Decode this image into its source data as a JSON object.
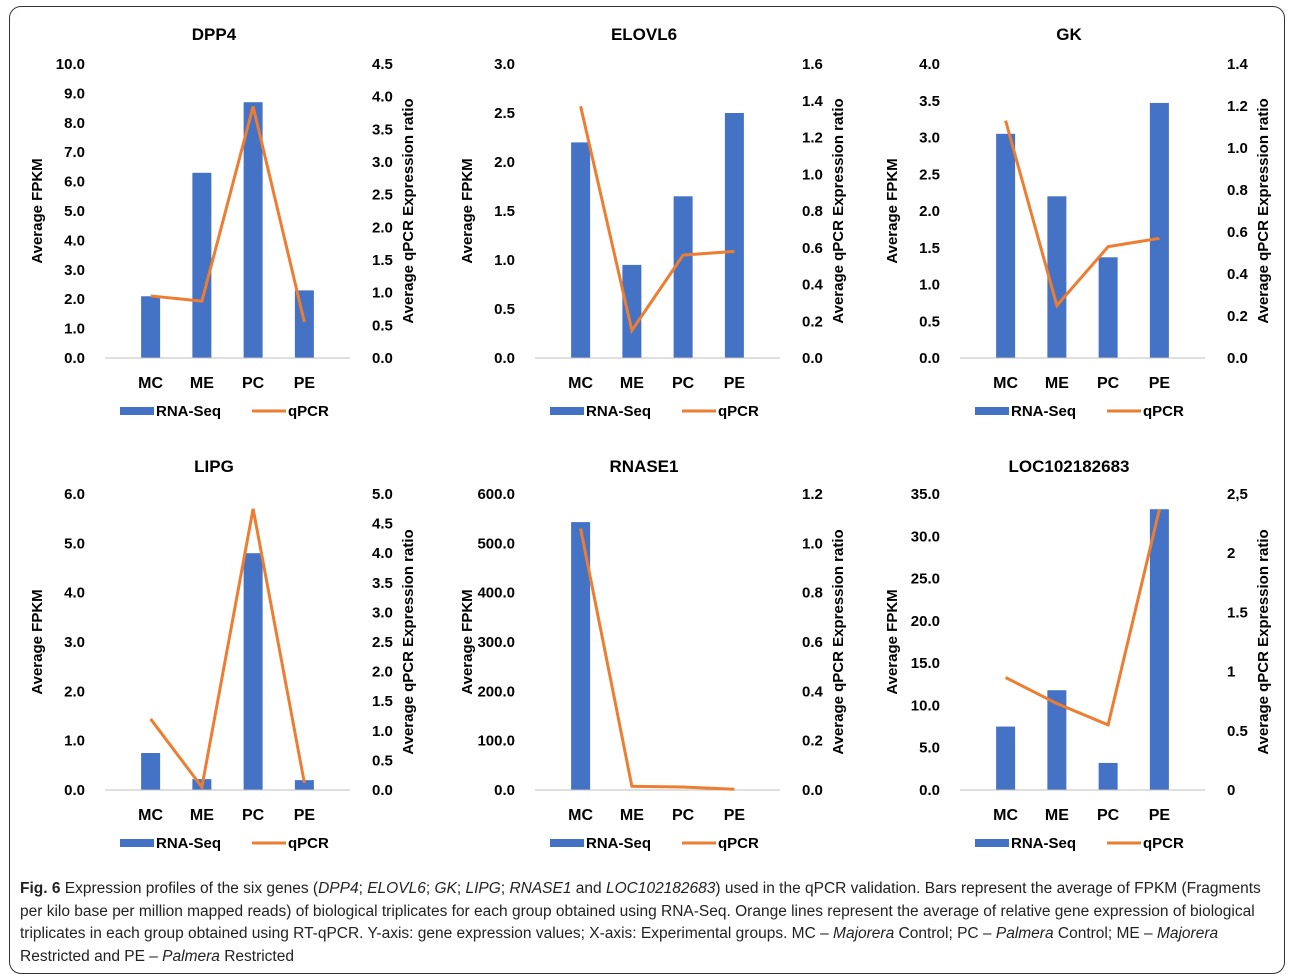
{
  "colors": {
    "bar": "#4472C4",
    "line": "#ED7D31",
    "text": "#000000",
    "axis": "#BFBFBF"
  },
  "legend": {
    "bar_label": "RNA-Seq",
    "line_label": "qPCR"
  },
  "axis_labels": {
    "y_left": "Average FPKM",
    "y_right": "Average qPCR Expression ratio"
  },
  "chart_data": [
    {
      "type": "bar",
      "title": "DPP4",
      "categories": [
        "MC",
        "ME",
        "PC",
        "PE"
      ],
      "series": [
        {
          "name": "RNA-Seq",
          "type": "bar",
          "axis": "left",
          "values": [
            2.1,
            6.3,
            8.7,
            2.3
          ]
        },
        {
          "name": "qPCR",
          "type": "line",
          "axis": "right",
          "values": [
            0.95,
            0.87,
            3.85,
            0.55
          ]
        }
      ],
      "ylabel": "Average FPKM",
      "y2label": "Average qPCR Expression ratio",
      "ylim": [
        0,
        10
      ],
      "y2lim": [
        0,
        4.5
      ],
      "yticks": [
        "0.0",
        "1.0",
        "2.0",
        "3.0",
        "4.0",
        "5.0",
        "6.0",
        "7.0",
        "8.0",
        "9.0",
        "10.0"
      ],
      "y2ticks": [
        "0.0",
        "0.5",
        "1.0",
        "1.5",
        "2.0",
        "2.5",
        "3.0",
        "3.5",
        "4.0",
        "4.5"
      ],
      "grid": false,
      "legend_position": "bottom"
    },
    {
      "type": "bar",
      "title": "ELOVL6",
      "categories": [
        "MC",
        "ME",
        "PC",
        "PE"
      ],
      "series": [
        {
          "name": "RNA-Seq",
          "type": "bar",
          "axis": "left",
          "values": [
            2.2,
            0.95,
            1.65,
            2.5
          ]
        },
        {
          "name": "qPCR",
          "type": "line",
          "axis": "right",
          "values": [
            1.37,
            0.15,
            0.56,
            0.58
          ]
        }
      ],
      "ylabel": "Average FPKM",
      "y2label": "Average qPCR Expression ratio",
      "ylim": [
        0,
        3
      ],
      "y2lim": [
        0,
        1.6
      ],
      "yticks": [
        "0.0",
        "0.5",
        "1.0",
        "1.5",
        "2.0",
        "2.5",
        "3.0"
      ],
      "y2ticks": [
        "0.0",
        "0.2",
        "0.4",
        "0.6",
        "0.8",
        "1.0",
        "1.2",
        "1.4",
        "1.6"
      ],
      "grid": false,
      "legend_position": "bottom"
    },
    {
      "type": "bar",
      "title": "GK",
      "categories": [
        "MC",
        "ME",
        "PC",
        "PE"
      ],
      "series": [
        {
          "name": "RNA-Seq",
          "type": "bar",
          "axis": "left",
          "values": [
            3.05,
            2.2,
            1.37,
            3.47
          ]
        },
        {
          "name": "qPCR",
          "type": "line",
          "axis": "right",
          "values": [
            1.13,
            0.25,
            0.53,
            0.57
          ]
        }
      ],
      "ylabel": "Average FPKM",
      "y2label": "Average qPCR Expression ratio",
      "ylim": [
        0,
        4
      ],
      "y2lim": [
        0,
        1.4
      ],
      "yticks": [
        "0.0",
        "0.5",
        "1.0",
        "1.5",
        "2.0",
        "2.5",
        "3.0",
        "3.5",
        "4.0"
      ],
      "y2ticks": [
        "0.0",
        "0.2",
        "0.4",
        "0.6",
        "0.8",
        "1.0",
        "1.2",
        "1.4"
      ],
      "grid": false,
      "legend_position": "bottom"
    },
    {
      "type": "bar",
      "title": "LIPG",
      "categories": [
        "MC",
        "ME",
        "PC",
        "PE"
      ],
      "series": [
        {
          "name": "RNA-Seq",
          "type": "bar",
          "axis": "left",
          "values": [
            0.75,
            0.22,
            4.8,
            0.2
          ]
        },
        {
          "name": "qPCR",
          "type": "line",
          "axis": "right",
          "values": [
            1.2,
            0.05,
            4.75,
            0.12
          ]
        }
      ],
      "ylabel": "Average FPKM",
      "y2label": "Average qPCR Expression ratio",
      "ylim": [
        0,
        6
      ],
      "y2lim": [
        0,
        5
      ],
      "yticks": [
        "0.0",
        "1.0",
        "2.0",
        "3.0",
        "4.0",
        "5.0",
        "6.0"
      ],
      "y2ticks": [
        "0.0",
        "0.5",
        "1.0",
        "1.5",
        "2.0",
        "2.5",
        "3.0",
        "3.5",
        "4.0",
        "4.5",
        "5.0"
      ],
      "grid": false,
      "legend_position": "bottom"
    },
    {
      "type": "bar",
      "title": "RNASE1",
      "categories": [
        "MC",
        "ME",
        "PC",
        "PE"
      ],
      "series": [
        {
          "name": "RNA-Seq",
          "type": "bar",
          "axis": "left",
          "values": [
            543,
            0.5,
            0.3,
            0.2
          ]
        },
        {
          "name": "qPCR",
          "type": "line",
          "axis": "right",
          "values": [
            1.06,
            0.015,
            0.012,
            0.003
          ]
        }
      ],
      "ylabel": "Average FPKM",
      "y2label": "Average qPCR Expression ratio",
      "ylim": [
        0,
        600
      ],
      "y2lim": [
        0,
        1.2
      ],
      "yticks": [
        "0.0",
        "100.0",
        "200.0",
        "300.0",
        "400.0",
        "500.0",
        "600.0"
      ],
      "y2ticks": [
        "0.0",
        "0.2",
        "0.4",
        "0.6",
        "0.8",
        "1.0",
        "1.2"
      ],
      "grid": false,
      "legend_position": "bottom"
    },
    {
      "type": "bar",
      "title": "LOC102182683",
      "categories": [
        "MC",
        "ME",
        "PC",
        "PE"
      ],
      "series": [
        {
          "name": "RNA-Seq",
          "type": "bar",
          "axis": "left",
          "values": [
            7.5,
            11.8,
            3.2,
            33.2
          ]
        },
        {
          "name": "qPCR",
          "type": "line",
          "axis": "right",
          "values": [
            0.95,
            0.73,
            0.55,
            2.37
          ]
        }
      ],
      "ylabel": "Average FPKM",
      "y2label": "Average qPCR Expression ratio",
      "ylim": [
        0,
        35
      ],
      "y2lim": [
        0,
        2.5
      ],
      "yticks": [
        "0.0",
        "5.0",
        "10.0",
        "15.0",
        "20.0",
        "25.0",
        "30.0",
        "35.0"
      ],
      "y2ticks": [
        "0",
        "0.5",
        "1",
        "1.5",
        "2",
        "2,5"
      ],
      "grid": false,
      "legend_position": "bottom"
    }
  ],
  "caption": {
    "label": "Fig. 6",
    "segments": [
      {
        "text": " Expression profiles of the six genes (",
        "italic": false
      },
      {
        "text": "DPP4",
        "italic": true
      },
      {
        "text": "; ",
        "italic": false
      },
      {
        "text": "ELOVL6",
        "italic": true
      },
      {
        "text": "; ",
        "italic": false
      },
      {
        "text": "GK",
        "italic": true
      },
      {
        "text": "; ",
        "italic": false
      },
      {
        "text": "LIPG",
        "italic": true
      },
      {
        "text": "; ",
        "italic": false
      },
      {
        "text": "RNASE1",
        "italic": true
      },
      {
        "text": " and ",
        "italic": false
      },
      {
        "text": "LOC102182683",
        "italic": true
      },
      {
        "text": ") used in the qPCR validation. Bars represent the average of FPKM (Fragments per kilo base per million mapped reads) of biological triplicates for each group obtained using RNA-Seq. Orange lines represent the average of relative gene expression of biological triplicates in each group obtained using RT-qPCR. Y-axis: gene expression values; X-axis: Experimental groups. MC – ",
        "italic": false
      },
      {
        "text": "Majorera",
        "italic": true
      },
      {
        "text": " Control; PC – ",
        "italic": false
      },
      {
        "text": "Palmera",
        "italic": true
      },
      {
        "text": " Control; ME – ",
        "italic": false
      },
      {
        "text": "Majorera",
        "italic": true
      },
      {
        "text": " Restricted and PE – ",
        "italic": false
      },
      {
        "text": "Palmera",
        "italic": true
      },
      {
        "text": " Restricted",
        "italic": false
      }
    ]
  }
}
